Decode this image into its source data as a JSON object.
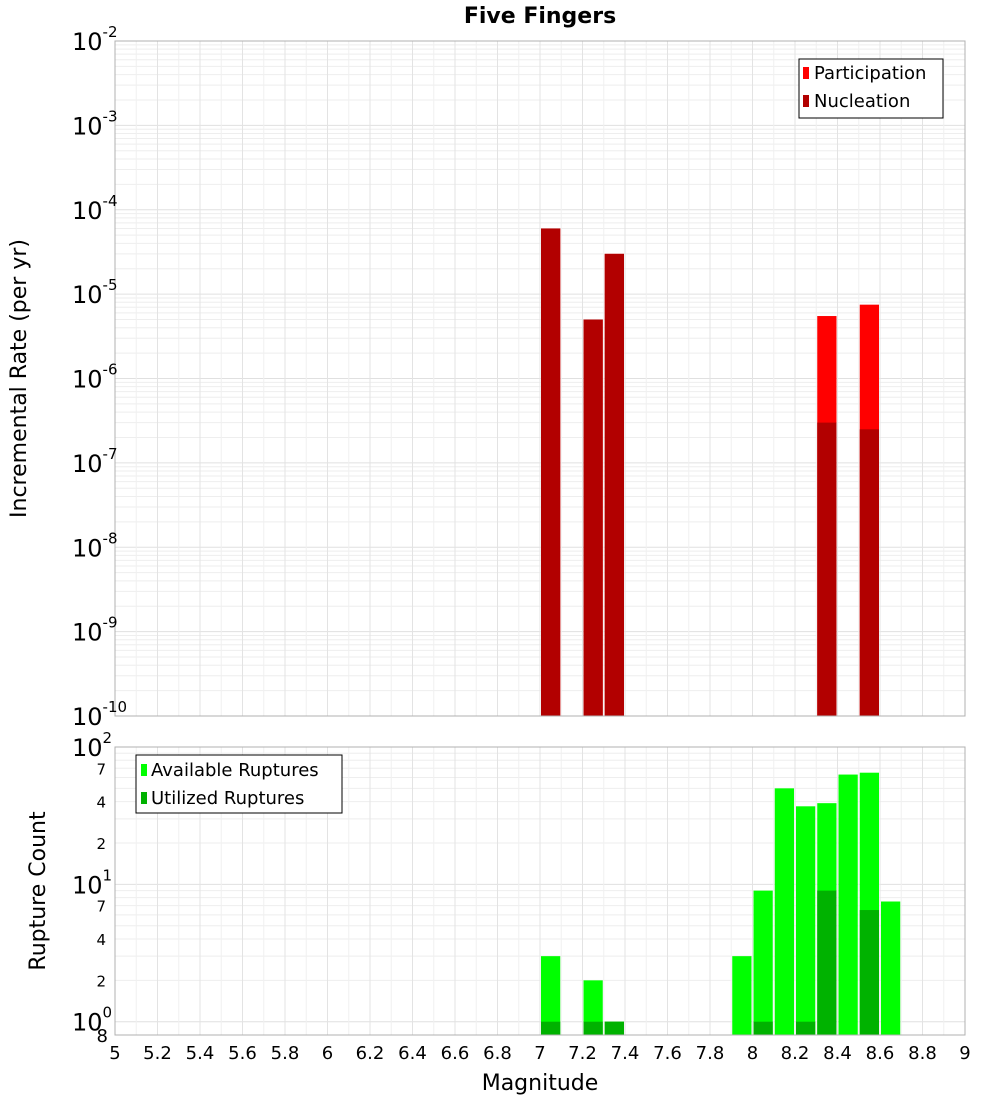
{
  "chart_data": [
    {
      "type": "bar",
      "title": "Five Fingers",
      "ylabel": "Incremental Rate (per yr)",
      "xlabel": "",
      "yscale": "log",
      "ylim": [
        1e-10,
        0.01
      ],
      "xlim": [
        5,
        9
      ],
      "bar_width": 0.1,
      "grid": true,
      "legend_position": "top-right",
      "y_tick_exponents": [
        "-10",
        "-9",
        "-8",
        "-7",
        "-6",
        "-5",
        "-4",
        "-3",
        "-2"
      ],
      "series": [
        {
          "name": "Participation",
          "color": "#ff0000",
          "points": [
            {
              "x": 7.05,
              "y": 6e-05
            },
            {
              "x": 7.25,
              "y": 5e-06
            },
            {
              "x": 7.35,
              "y": 3e-05
            },
            {
              "x": 8.35,
              "y": 5.5e-06
            },
            {
              "x": 8.55,
              "y": 7.5e-06
            }
          ]
        },
        {
          "name": "Nucleation",
          "color": "#b20000",
          "points": [
            {
              "x": 7.05,
              "y": 6e-05
            },
            {
              "x": 7.25,
              "y": 5e-06
            },
            {
              "x": 7.35,
              "y": 3e-05
            },
            {
              "x": 8.35,
              "y": 3e-07
            },
            {
              "x": 8.55,
              "y": 2.5e-07
            }
          ]
        }
      ]
    },
    {
      "type": "bar",
      "title": "",
      "ylabel": "Rupture Count",
      "xlabel": "Magnitude",
      "yscale": "log",
      "ylim": [
        0.8,
        100
      ],
      "xlim": [
        5,
        9
      ],
      "bar_width": 0.1,
      "grid": true,
      "legend_position": "top-left",
      "x_ticks": [
        "5",
        "5.2",
        "5.4",
        "5.6",
        "5.8",
        "6",
        "6.2",
        "6.4",
        "6.6",
        "6.8",
        "7",
        "7.2",
        "7.4",
        "7.6",
        "7.8",
        "8",
        "8.2",
        "8.4",
        "8.6",
        "8.8",
        "9"
      ],
      "y_major_ticks": [
        {
          "value": 1,
          "base": "10",
          "exp": "0"
        },
        {
          "value": 10,
          "base": "10",
          "exp": "1"
        },
        {
          "value": 100,
          "base": "10",
          "exp": "2"
        }
      ],
      "y_minor_ticks": [
        {
          "value": 0.8,
          "label": "8"
        },
        {
          "value": 2,
          "label": "2"
        },
        {
          "value": 4,
          "label": "4"
        },
        {
          "value": 7,
          "label": "7"
        },
        {
          "value": 20,
          "label": "2"
        },
        {
          "value": 40,
          "label": "4"
        },
        {
          "value": 70,
          "label": "7"
        }
      ],
      "series": [
        {
          "name": "Available Ruptures",
          "color": "#00ff00",
          "points": [
            {
              "x": 7.05,
              "y": 3
            },
            {
              "x": 7.25,
              "y": 2
            },
            {
              "x": 7.35,
              "y": 1
            },
            {
              "x": 7.95,
              "y": 3
            },
            {
              "x": 8.05,
              "y": 9
            },
            {
              "x": 8.15,
              "y": 50
            },
            {
              "x": 8.25,
              "y": 37
            },
            {
              "x": 8.35,
              "y": 39
            },
            {
              "x": 8.45,
              "y": 63
            },
            {
              "x": 8.55,
              "y": 65
            },
            {
              "x": 8.65,
              "y": 7.5
            }
          ]
        },
        {
          "name": "Utilized Ruptures",
          "color": "#00b200",
          "points": [
            {
              "x": 7.05,
              "y": 1
            },
            {
              "x": 7.25,
              "y": 1
            },
            {
              "x": 7.35,
              "y": 1
            },
            {
              "x": 8.05,
              "y": 1
            },
            {
              "x": 8.25,
              "y": 1
            },
            {
              "x": 8.35,
              "y": 9
            },
            {
              "x": 8.55,
              "y": 6.5
            }
          ]
        }
      ]
    }
  ]
}
